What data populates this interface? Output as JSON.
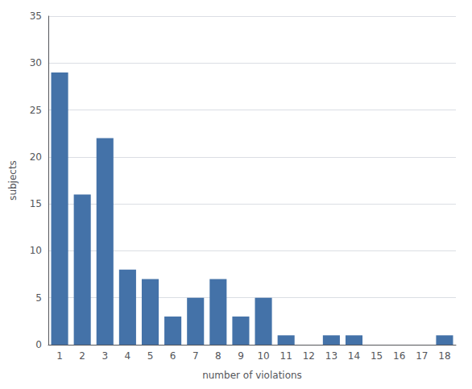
{
  "chart_data": {
    "type": "bar",
    "x_label": "number of violations",
    "y_label": "subjects",
    "x": [
      1,
      2,
      3,
      4,
      5,
      6,
      7,
      8,
      9,
      10,
      11,
      12,
      13,
      14,
      15,
      16,
      17,
      18
    ],
    "values": [
      29,
      16,
      22,
      8,
      7,
      3,
      5,
      7,
      3,
      5,
      1,
      0,
      1,
      1,
      0,
      0,
      0,
      1
    ],
    "color": "#4472a8",
    "xlim": [
      0.5,
      18.5
    ],
    "xticks": [
      1,
      2,
      3,
      4,
      5,
      6,
      7,
      8,
      9,
      10,
      11,
      12,
      13,
      14,
      15,
      16,
      17,
      18
    ],
    "ylim": [
      0,
      35
    ],
    "yticks": [
      0,
      5,
      10,
      15,
      20,
      25,
      30,
      35
    ],
    "grid": true
  }
}
